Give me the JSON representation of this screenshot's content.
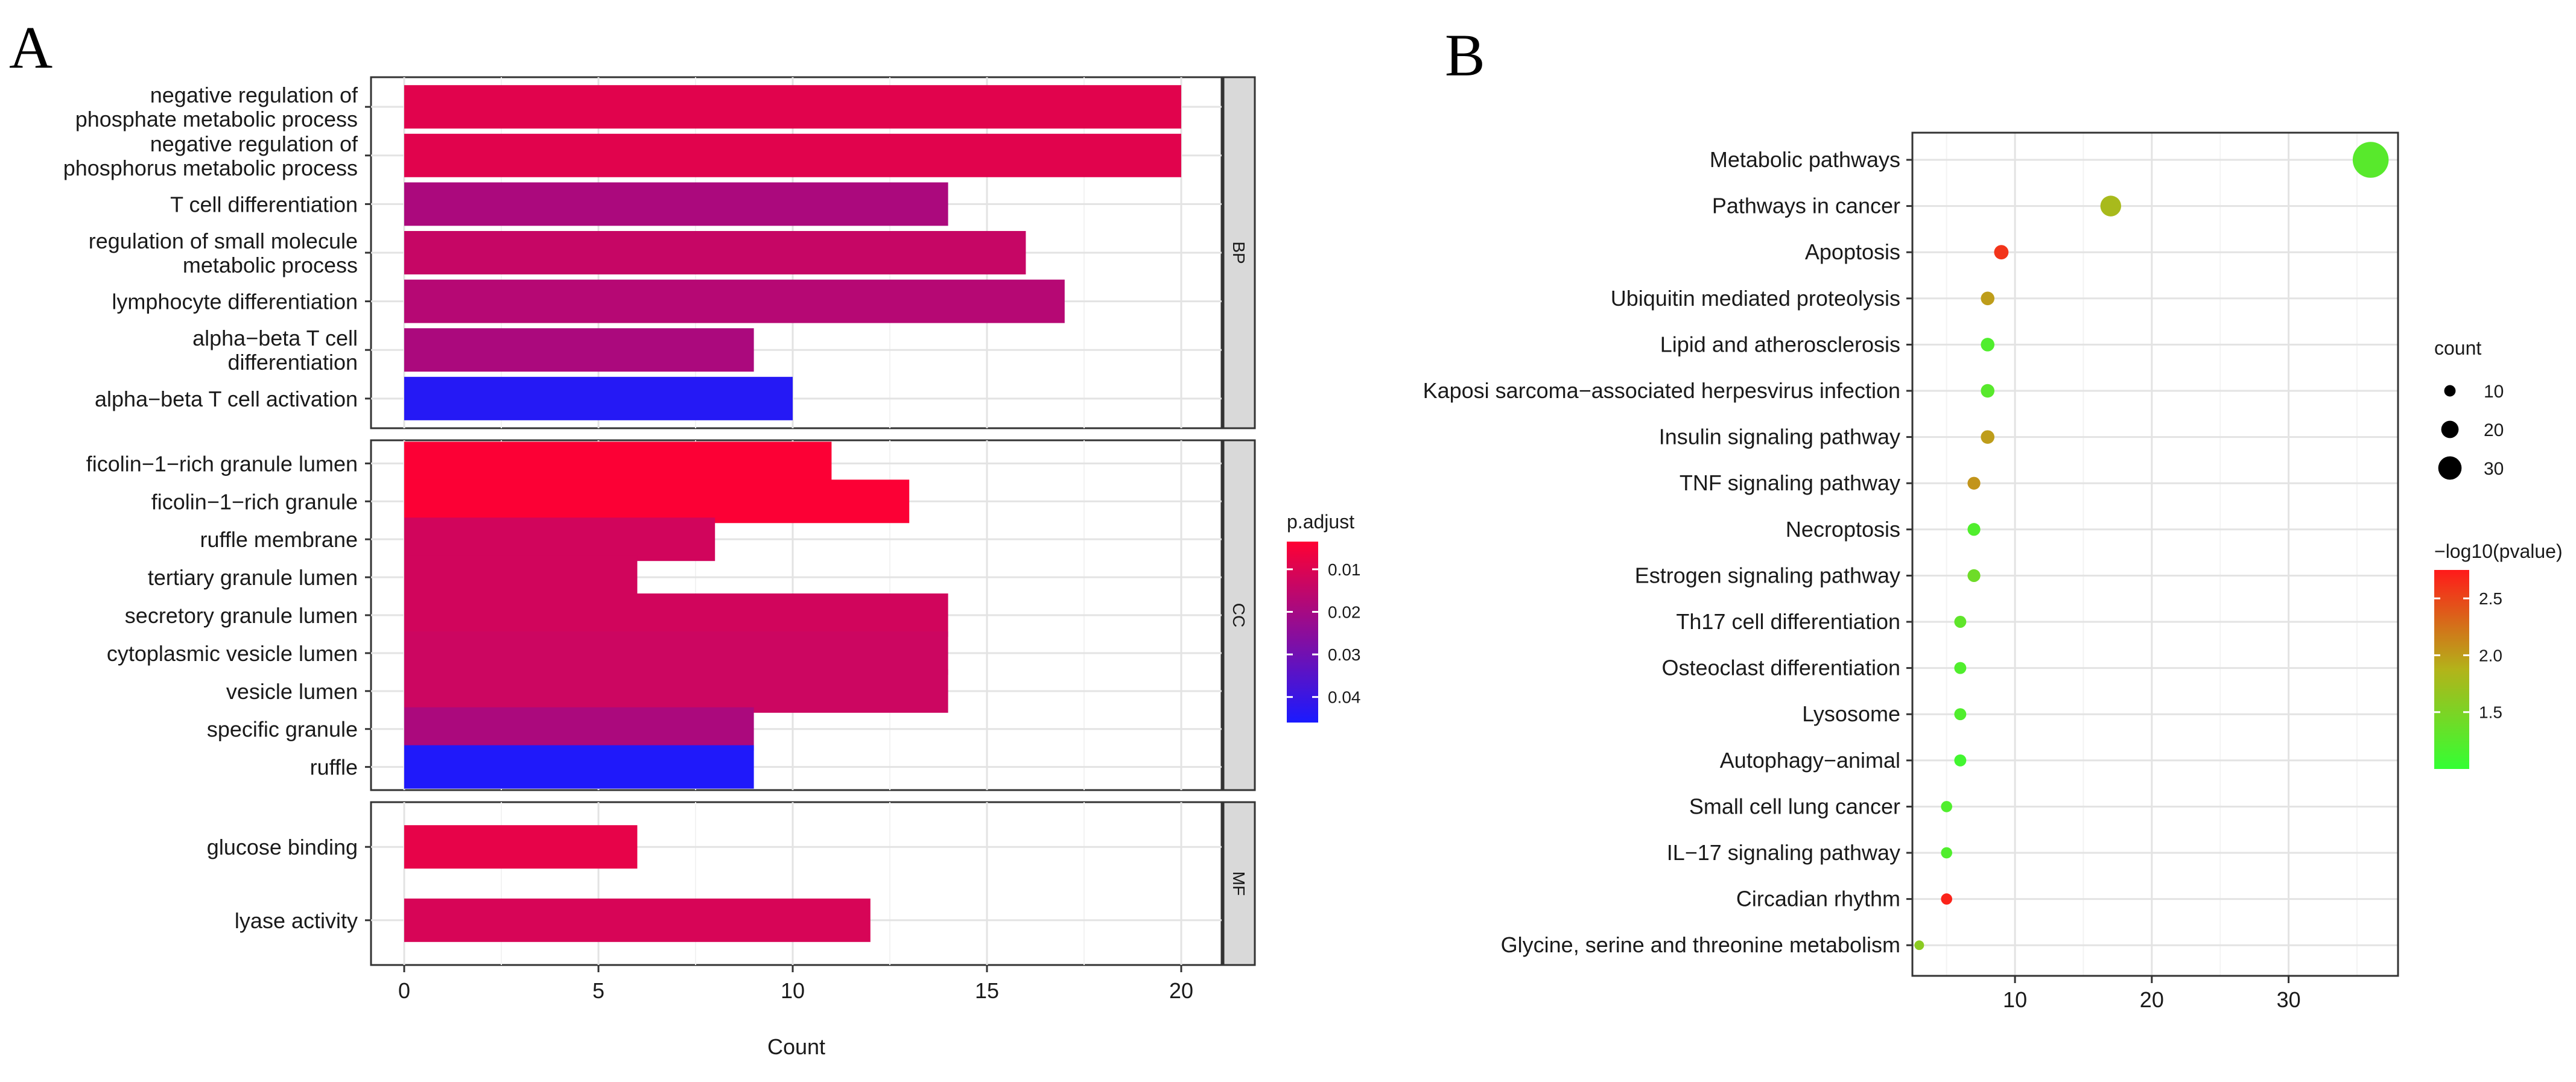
{
  "panels": {
    "a": {
      "letter": "A"
    },
    "b": {
      "letter": "B"
    }
  },
  "chart_data": [
    {
      "type": "bar",
      "orientation": "horizontal",
      "xlabel": "Count",
      "xlim": [
        -1,
        21.8
      ],
      "xticks": [
        0,
        5,
        10,
        15,
        20
      ],
      "grid": true,
      "legend": {
        "title": "p.adjust",
        "position": "right",
        "ticks": [
          0.01,
          0.02,
          0.03,
          0.04
        ],
        "range": [
          0.0035,
          0.046
        ],
        "colors": {
          "low": "#ff0033",
          "high": "#1a1aff"
        }
      },
      "facets": [
        {
          "name": "BP",
          "bars": [
            {
              "label": "negative regulation of\nphosphate metabolic process",
              "count": 20,
              "p_adjust": 0.009
            },
            {
              "label": "negative regulation of\nphosphorus metabolic process",
              "count": 20,
              "p_adjust": 0.009
            },
            {
              "label": "T cell differentiation",
              "count": 14,
              "p_adjust": 0.019
            },
            {
              "label": "regulation of small molecule\nmetabolic process",
              "count": 16,
              "p_adjust": 0.014
            },
            {
              "label": "lymphocyte differentiation",
              "count": 17,
              "p_adjust": 0.017
            },
            {
              "label": "alpha−beta T cell\ndifferentiation",
              "count": 9,
              "p_adjust": 0.019
            },
            {
              "label": "alpha−beta T cell activation",
              "count": 10,
              "p_adjust": 0.044
            }
          ]
        },
        {
          "name": "CC",
          "bars": [
            {
              "label": "ficolin−1−rich granule lumen",
              "count": 11,
              "p_adjust": 0.004
            },
            {
              "label": "ficolin−1−rich granule",
              "count": 13,
              "p_adjust": 0.004
            },
            {
              "label": "ruffle membrane",
              "count": 8,
              "p_adjust": 0.012
            },
            {
              "label": "tertiary granule lumen",
              "count": 6,
              "p_adjust": 0.012
            },
            {
              "label": "secretory granule lumen",
              "count": 14,
              "p_adjust": 0.012
            },
            {
              "label": "cytoplasmic vesicle lumen",
              "count": 14,
              "p_adjust": 0.013
            },
            {
              "label": "vesicle lumen",
              "count": 14,
              "p_adjust": 0.013
            },
            {
              "label": "specific granule",
              "count": 9,
              "p_adjust": 0.019
            },
            {
              "label": "ruffle",
              "count": 9,
              "p_adjust": 0.045
            }
          ]
        },
        {
          "name": "MF",
          "bars": [
            {
              "label": "glucose binding",
              "count": 6,
              "p_adjust": 0.008
            },
            {
              "label": "lyase activity",
              "count": 12,
              "p_adjust": 0.011
            }
          ]
        }
      ]
    },
    {
      "type": "scatter",
      "xlim": [
        2.5,
        38
      ],
      "xticks": [
        10,
        20,
        30
      ],
      "grid": true,
      "categories": [
        "Metabolic pathways",
        "Pathways in cancer",
        "Apoptosis",
        "Ubiquitin mediated proteolysis",
        "Lipid and atherosclerosis",
        "Kaposi sarcoma−associated herpesvirus infection",
        "Insulin signaling pathway",
        "TNF signaling pathway",
        "Necroptosis",
        "Estrogen signaling pathway",
        "Th17 cell differentiation",
        "Osteoclast differentiation",
        "Lysosome",
        "Autophagy−animal",
        "Small cell lung cancer",
        "IL−17 signaling pathway",
        "Circadian rhythm",
        "Glycine, serine and threonine metabolism"
      ],
      "points": [
        {
          "count": 36,
          "neg_log10_p": 1.25
        },
        {
          "count": 17,
          "neg_log10_p": 1.8
        },
        {
          "count": 9,
          "neg_log10_p": 2.6
        },
        {
          "count": 8,
          "neg_log10_p": 2.0
        },
        {
          "count": 8,
          "neg_log10_p": 1.2
        },
        {
          "count": 8,
          "neg_log10_p": 1.25
        },
        {
          "count": 8,
          "neg_log10_p": 2.0
        },
        {
          "count": 7,
          "neg_log10_p": 2.05
        },
        {
          "count": 7,
          "neg_log10_p": 1.2
        },
        {
          "count": 7,
          "neg_log10_p": 1.4
        },
        {
          "count": 6,
          "neg_log10_p": 1.3
        },
        {
          "count": 6,
          "neg_log10_p": 1.2
        },
        {
          "count": 6,
          "neg_log10_p": 1.2
        },
        {
          "count": 6,
          "neg_log10_p": 1.1
        },
        {
          "count": 5,
          "neg_log10_p": 1.2
        },
        {
          "count": 5,
          "neg_log10_p": 1.2
        },
        {
          "count": 5,
          "neg_log10_p": 2.7
        },
        {
          "count": 3,
          "neg_log10_p": 1.6
        }
      ],
      "size_legend": {
        "title": "count",
        "values": [
          10,
          20,
          30
        ]
      },
      "color_legend": {
        "title": "−log10(pvalue)",
        "ticks": [
          1.5,
          2.0,
          2.5
        ],
        "tick_labels": [
          "1.5",
          "2.0",
          "2.5"
        ],
        "range": [
          1.0,
          2.75
        ],
        "colors": {
          "low": "#33ff33",
          "mid": "#b3b31a",
          "high": "#ff1a1a"
        }
      }
    }
  ]
}
